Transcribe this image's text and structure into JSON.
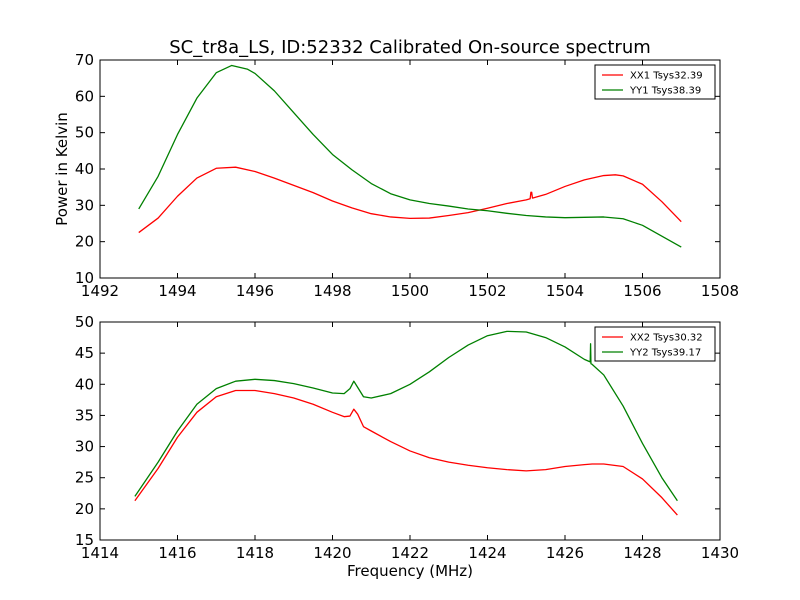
{
  "figure_title": "SC_tr8a_LS, ID:52332 Calibrated On-source spectrum",
  "chart_data": [
    {
      "type": "line",
      "ylabel": "Power in Kelvin",
      "xlabel": "",
      "xlim": [
        1492,
        1508
      ],
      "ylim": [
        10,
        70
      ],
      "xticks": [
        1492,
        1494,
        1496,
        1498,
        1500,
        1502,
        1504,
        1506,
        1508
      ],
      "yticks": [
        10,
        20,
        30,
        40,
        50,
        60,
        70
      ],
      "legend_position": "top-right",
      "series": [
        {
          "name": "XX1 Tsys32.39",
          "color": "#ff0000",
          "x": [
            1493.0,
            1493.5,
            1494.0,
            1494.5,
            1495.0,
            1495.5,
            1496.0,
            1496.5,
            1497.0,
            1497.5,
            1498.0,
            1498.5,
            1499.0,
            1499.5,
            1500.0,
            1500.5,
            1501.0,
            1501.5,
            1502.0,
            1502.5,
            1503.0,
            1503.1,
            1503.12,
            1503.14,
            1503.16,
            1503.5,
            1504.0,
            1504.5,
            1505.0,
            1505.3,
            1505.5,
            1506.0,
            1506.5,
            1507.0
          ],
          "y": [
            22.5,
            26.5,
            32.5,
            37.5,
            40.2,
            40.5,
            39.3,
            37.5,
            35.5,
            33.5,
            31.2,
            29.3,
            27.7,
            26.8,
            26.4,
            26.5,
            27.2,
            28.0,
            29.2,
            30.5,
            31.5,
            31.8,
            33.6,
            33.6,
            32.0,
            33.0,
            35.2,
            37.0,
            38.2,
            38.4,
            38.1,
            35.8,
            31.0,
            25.5
          ]
        },
        {
          "name": "YY1 Tsys38.39",
          "color": "#008000",
          "x": [
            1493.0,
            1493.5,
            1494.0,
            1494.5,
            1495.0,
            1495.4,
            1495.8,
            1496.0,
            1496.5,
            1497.0,
            1497.5,
            1498.0,
            1498.5,
            1499.0,
            1499.5,
            1500.0,
            1500.5,
            1501.0,
            1501.5,
            1502.0,
            1502.5,
            1503.0,
            1503.5,
            1504.0,
            1504.5,
            1505.0,
            1505.5,
            1506.0,
            1506.5,
            1507.0
          ],
          "y": [
            29.0,
            38.0,
            49.5,
            59.5,
            66.5,
            68.5,
            67.5,
            66.3,
            61.5,
            55.5,
            49.5,
            44.0,
            39.8,
            36.0,
            33.2,
            31.5,
            30.5,
            29.8,
            29.0,
            28.5,
            27.8,
            27.2,
            26.8,
            26.6,
            26.7,
            26.8,
            26.3,
            24.5,
            21.5,
            18.5
          ]
        }
      ]
    },
    {
      "type": "line",
      "ylabel": "",
      "xlabel": "Frequency (MHz)",
      "xlim": [
        1414,
        1430
      ],
      "ylim": [
        15,
        50
      ],
      "xticks": [
        1414,
        1416,
        1418,
        1420,
        1422,
        1424,
        1426,
        1428,
        1430
      ],
      "yticks": [
        15,
        20,
        25,
        30,
        35,
        40,
        45,
        50
      ],
      "legend_position": "top-right",
      "series": [
        {
          "name": "XX2 Tsys30.32",
          "color": "#ff0000",
          "x": [
            1414.9,
            1415.5,
            1416.0,
            1416.5,
            1417.0,
            1417.5,
            1418.0,
            1418.5,
            1419.0,
            1419.5,
            1420.0,
            1420.3,
            1420.45,
            1420.55,
            1420.65,
            1420.8,
            1421.0,
            1421.5,
            1422.0,
            1422.5,
            1423.0,
            1423.5,
            1424.0,
            1424.5,
            1425.0,
            1425.5,
            1426.0,
            1426.5,
            1426.7,
            1427.0,
            1427.5,
            1428.0,
            1428.5,
            1428.9
          ],
          "y": [
            21.3,
            26.5,
            31.5,
            35.5,
            38.0,
            39.0,
            39.0,
            38.5,
            37.8,
            36.8,
            35.5,
            34.8,
            34.9,
            36.0,
            35.2,
            33.2,
            32.5,
            30.8,
            29.3,
            28.2,
            27.5,
            27.0,
            26.6,
            26.3,
            26.1,
            26.3,
            26.8,
            27.1,
            27.2,
            27.2,
            26.8,
            24.8,
            21.8,
            19.0
          ]
        },
        {
          "name": "YY2 Tsys39.17",
          "color": "#008000",
          "x": [
            1414.9,
            1415.5,
            1416.0,
            1416.5,
            1417.0,
            1417.5,
            1418.0,
            1418.5,
            1419.0,
            1419.5,
            1420.0,
            1420.3,
            1420.45,
            1420.55,
            1420.65,
            1420.8,
            1421.0,
            1421.5,
            1422.0,
            1422.5,
            1423.0,
            1423.5,
            1424.0,
            1424.5,
            1425.0,
            1425.5,
            1426.0,
            1426.5,
            1426.65,
            1426.66,
            1426.67,
            1426.7,
            1427.0,
            1427.5,
            1428.0,
            1428.5,
            1428.9
          ],
          "y": [
            22.0,
            27.5,
            32.5,
            36.8,
            39.3,
            40.5,
            40.8,
            40.6,
            40.1,
            39.4,
            38.6,
            38.5,
            39.3,
            40.5,
            39.5,
            38.0,
            37.8,
            38.5,
            40.0,
            42.0,
            44.3,
            46.3,
            47.8,
            48.5,
            48.4,
            47.5,
            46.0,
            44.0,
            43.6,
            46.5,
            43.3,
            43.2,
            41.5,
            36.5,
            30.5,
            25.0,
            21.3
          ]
        }
      ]
    }
  ]
}
